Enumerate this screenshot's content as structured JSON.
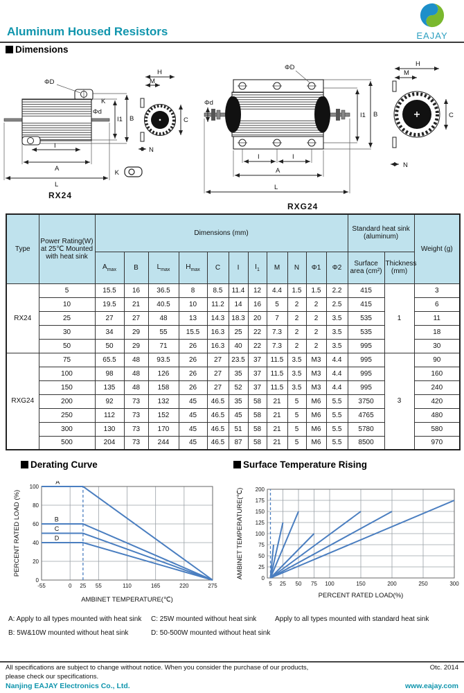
{
  "header": {
    "title": "Aluminum Housed Resistors",
    "logo_text": "EAJAY",
    "accent_color": "#1095ad"
  },
  "sections": {
    "dimensions": "Dimensions",
    "derating": "Derating Curve",
    "surface": "Surface Temperature Rising"
  },
  "drawings": {
    "rx24": {
      "caption": "RX24",
      "labels": {
        "phiD": "ΦD",
        "k": "K",
        "phid": "Φd",
        "i1": "I1",
        "b": "B",
        "i": "I",
        "a": "A",
        "l": "L",
        "k_detail": "K"
      }
    },
    "rxg24": {
      "caption": "RXG24",
      "labels": {
        "phiD": "ΦD",
        "phid": "Φd",
        "i1": "I1",
        "b": "B",
        "i_left": "I",
        "i_right": "I",
        "a": "A",
        "l": "L"
      }
    },
    "end_view": {
      "h": "H",
      "m": "M",
      "c": "C",
      "n": "N"
    }
  },
  "table": {
    "header": {
      "type": "Type",
      "power": "Power Rating(W) at 25℃ Mounted with heat sink",
      "dims": "Dimensions (mm)",
      "heatsink": "Standard heat sink (aluminum)",
      "weight": "Weight (g)",
      "surface": "Surface area (cm²)",
      "thickness": "Thickness (mm)"
    },
    "sub_headers": [
      {
        "b": "A",
        "s": "max"
      },
      {
        "b": "B"
      },
      {
        "b": "L",
        "s": "max"
      },
      {
        "b": "H",
        "s": "max"
      },
      {
        "b": "C"
      },
      {
        "b": "I"
      },
      {
        "b": "I",
        "s": "1"
      },
      {
        "b": "M"
      },
      {
        "b": "N"
      },
      {
        "b": "Φ1"
      },
      {
        "b": "Φ2"
      }
    ],
    "groups": [
      {
        "type": "RX24",
        "thickness": "1",
        "rows": [
          [
            "5",
            "15.5",
            "16",
            "36.5",
            "8",
            "8.5",
            "11.4",
            "12",
            "4.4",
            "1.5",
            "1.5",
            "2.2",
            "415",
            "3"
          ],
          [
            "10",
            "19.5",
            "21",
            "40.5",
            "10",
            "11.2",
            "14",
            "16",
            "5",
            "2",
            "2",
            "2.5",
            "415",
            "6"
          ],
          [
            "25",
            "27",
            "27",
            "48",
            "13",
            "14.3",
            "18.3",
            "20",
            "7",
            "2",
            "2",
            "3.5",
            "535",
            "11"
          ],
          [
            "30",
            "34",
            "29",
            "55",
            "15.5",
            "16.3",
            "25",
            "22",
            "7.3",
            "2",
            "2",
            "3.5",
            "535",
            "18"
          ],
          [
            "50",
            "50",
            "29",
            "71",
            "26",
            "16.3",
            "40",
            "22",
            "7.3",
            "2",
            "2",
            "3.5",
            "995",
            "30"
          ]
        ]
      },
      {
        "type": "RXG24",
        "thickness": "3",
        "rows": [
          [
            "75",
            "65.5",
            "48",
            "93.5",
            "26",
            "27",
            "23.5",
            "37",
            "11.5",
            "3.5",
            "M3",
            "4.4",
            "995",
            "90"
          ],
          [
            "100",
            "98",
            "48",
            "126",
            "26",
            "27",
            "35",
            "37",
            "11.5",
            "3.5",
            "M3",
            "4.4",
            "995",
            "160"
          ],
          [
            "150",
            "135",
            "48",
            "158",
            "26",
            "27",
            "52",
            "37",
            "11.5",
            "3.5",
            "M3",
            "4.4",
            "995",
            "240"
          ],
          [
            "200",
            "92",
            "73",
            "132",
            "45",
            "46.5",
            "35",
            "58",
            "21",
            "5",
            "M6",
            "5.5",
            "3750",
            "420"
          ],
          [
            "250",
            "112",
            "73",
            "152",
            "45",
            "46.5",
            "45",
            "58",
            "21",
            "5",
            "M6",
            "5.5",
            "4765",
            "480"
          ],
          [
            "300",
            "130",
            "73",
            "170",
            "45",
            "46.5",
            "51",
            "58",
            "21",
            "5",
            "M6",
            "5.5",
            "5780",
            "580"
          ],
          [
            "500",
            "204",
            "73",
            "244",
            "45",
            "46.5",
            "87",
            "58",
            "21",
            "5",
            "M6",
            "5.5",
            "8500",
            "970"
          ]
        ]
      }
    ]
  },
  "chart_data": [
    {
      "type": "line",
      "title": "Derating Curve",
      "xlabel": "AMBINET TEMPERATURE(℃)",
      "ylabel": "PERCENT RATED LOAD (%)",
      "xlim": [
        -55,
        275
      ],
      "ylim": [
        0,
        100
      ],
      "xticks": [
        -55,
        0,
        25,
        55,
        110,
        165,
        220,
        275
      ],
      "yticks": [
        0,
        20,
        40,
        60,
        80,
        100
      ],
      "grid_x": [
        0,
        55,
        110,
        165,
        220,
        275
      ],
      "dashed_vline": {
        "x": 25,
        "y0": 0,
        "y1": 100
      },
      "line_color": "#4a7ec0",
      "grid": true,
      "legend_position": "inline-labels",
      "series": [
        {
          "name": "A",
          "label_x": -28,
          "points": [
            [
              -55,
              100
            ],
            [
              25,
              100
            ],
            [
              275,
              0
            ]
          ]
        },
        {
          "name": "B",
          "label_x": -30,
          "points": [
            [
              -55,
              60
            ],
            [
              25,
              60
            ],
            [
              275,
              0
            ]
          ]
        },
        {
          "name": "C",
          "label_x": -30,
          "points": [
            [
              -55,
              50
            ],
            [
              25,
              50
            ],
            [
              275,
              0
            ]
          ]
        },
        {
          "name": "D",
          "label_x": -30,
          "points": [
            [
              -55,
              40
            ],
            [
              25,
              40
            ],
            [
              275,
              0
            ]
          ]
        }
      ]
    },
    {
      "type": "line",
      "title": "Surface Temperature Rising",
      "xlabel": "PERCENT RATED LOAD(%)",
      "ylabel": "AMBINET TEMPERATURE(℃)",
      "xlim": [
        0,
        300
      ],
      "ylim": [
        0,
        200
      ],
      "xticks": [
        5,
        25,
        50,
        75,
        100,
        150,
        200,
        250,
        300
      ],
      "yticks": [
        0,
        25,
        50,
        75,
        100,
        125,
        150,
        175,
        200
      ],
      "grid_x": [
        25,
        50,
        75,
        100,
        150,
        200,
        250,
        300
      ],
      "dashed_vline": {
        "x": 5,
        "y0": 0,
        "y1": 200
      },
      "line_color": "#4a7ec0",
      "grid": true,
      "series": [
        {
          "name": "",
          "points": [
            [
              5,
              0
            ],
            [
              10,
              75
            ]
          ]
        },
        {
          "name": "",
          "points": [
            [
              5,
              0
            ],
            [
              25,
              125
            ]
          ]
        },
        {
          "name": "",
          "points": [
            [
              5,
              0
            ],
            [
              50,
              150
            ]
          ]
        },
        {
          "name": "",
          "points": [
            [
              5,
              0
            ],
            [
              75,
              100
            ]
          ]
        },
        {
          "name": "",
          "points": [
            [
              5,
              0
            ],
            [
              150,
              150
            ]
          ]
        },
        {
          "name": "",
          "points": [
            [
              5,
              0
            ],
            [
              200,
              150
            ]
          ]
        },
        {
          "name": "",
          "points": [
            [
              5,
              0
            ],
            [
              300,
              175
            ]
          ]
        }
      ]
    }
  ],
  "notes": {
    "a": "A: Apply to all types mounted with heat sink",
    "c": "C: 25W mounted without heat sink",
    "std": "Apply to all types mounted with standard heat sink",
    "b": "B: 5W&10W mounted without heat sink",
    "d": "D: 50-500W mounted without heat sink"
  },
  "footer": {
    "line1": "All specifications are subject to change without notice. When you consider the purchase of our products,",
    "line2": "please check our specifications.",
    "company": "Nanjing EAJAY Electronics Co., Ltd.",
    "date": "Otc. 2014",
    "website": "www.eajay.com"
  }
}
